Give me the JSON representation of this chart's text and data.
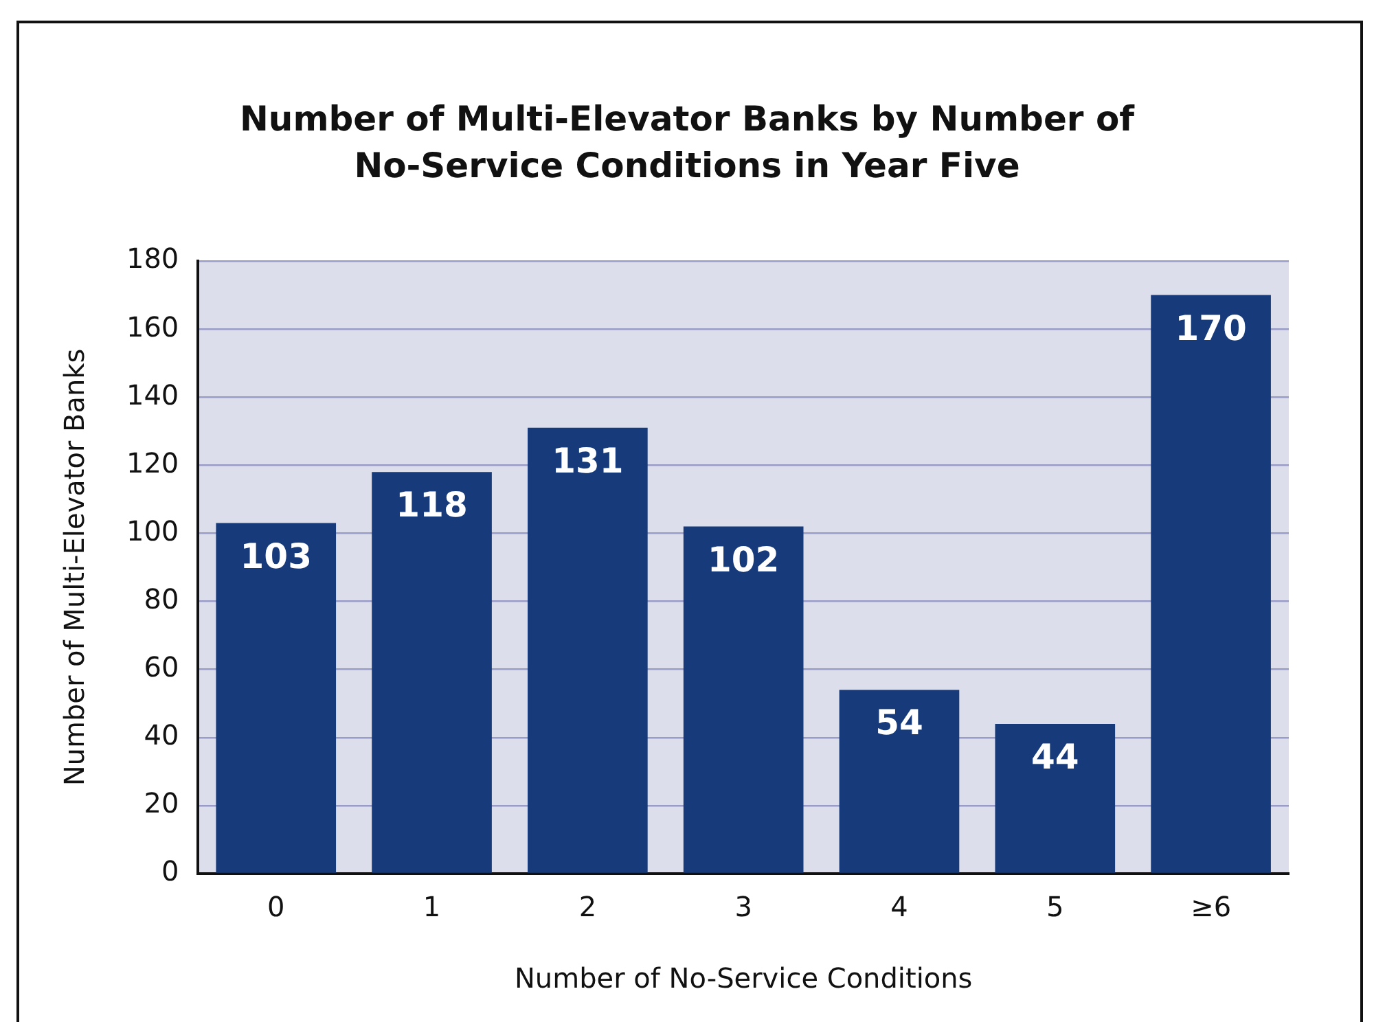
{
  "chart_data": {
    "type": "bar",
    "title": "Number of Multi-Elevator Banks by Number of No-Service Conditions in Year Five",
    "xlabel": "Number of No-Service Conditions",
    "ylabel": "Number of Multi-Elevator Banks",
    "categories": [
      "0",
      "1",
      "2",
      "3",
      "4",
      "5",
      "≥6"
    ],
    "values": [
      103,
      118,
      131,
      102,
      54,
      44,
      170
    ],
    "color": "#173a7a",
    "ylim": [
      0,
      180
    ],
    "yticks": [
      0,
      20,
      40,
      60,
      80,
      100,
      120,
      140,
      160,
      180
    ],
    "grid": "y",
    "legend": false,
    "data_labels": true
  }
}
